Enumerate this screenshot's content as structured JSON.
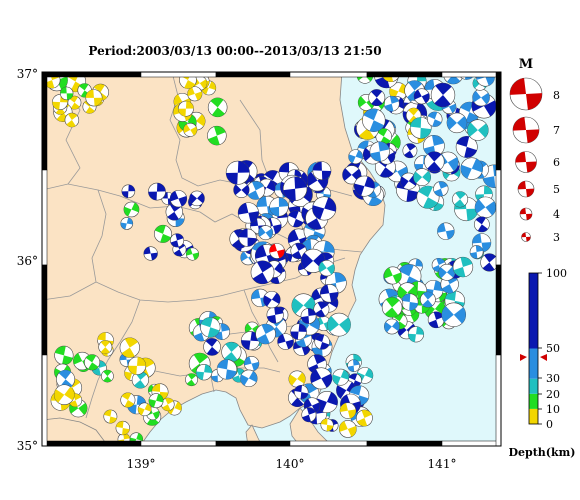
{
  "title": "Period:2003/03/13 00:00--2013/03/13 21:50",
  "map": {
    "lat_labels": [
      "37°",
      "36°",
      "35°"
    ],
    "lon_labels": [
      "139°",
      "140°",
      "141°"
    ],
    "colors": {
      "land": "#fbe3c4",
      "sea": "#dff8fb",
      "boundary": "#999999",
      "frame": "#000000"
    }
  },
  "legend": {
    "magnitude_title": "M",
    "magnitudes": [
      "8",
      "7",
      "6",
      "5",
      "4",
      "3"
    ],
    "depth_title": "Depth(km)",
    "depth_ticks": [
      "100",
      "50",
      "30",
      "20",
      "10",
      "0"
    ],
    "depth_colors": [
      {
        "from": 0,
        "to": 10,
        "color": "#f2d600"
      },
      {
        "from": 10,
        "to": 20,
        "color": "#22dd22"
      },
      {
        "from": 20,
        "to": 30,
        "color": "#20c0c0"
      },
      {
        "from": 30,
        "to": 50,
        "color": "#2a8ee0"
      },
      {
        "from": 50,
        "to": 100,
        "color": "#0a18b0"
      }
    ],
    "marker_color": "#d00000",
    "highlight_color": "#ff0000"
  }
}
